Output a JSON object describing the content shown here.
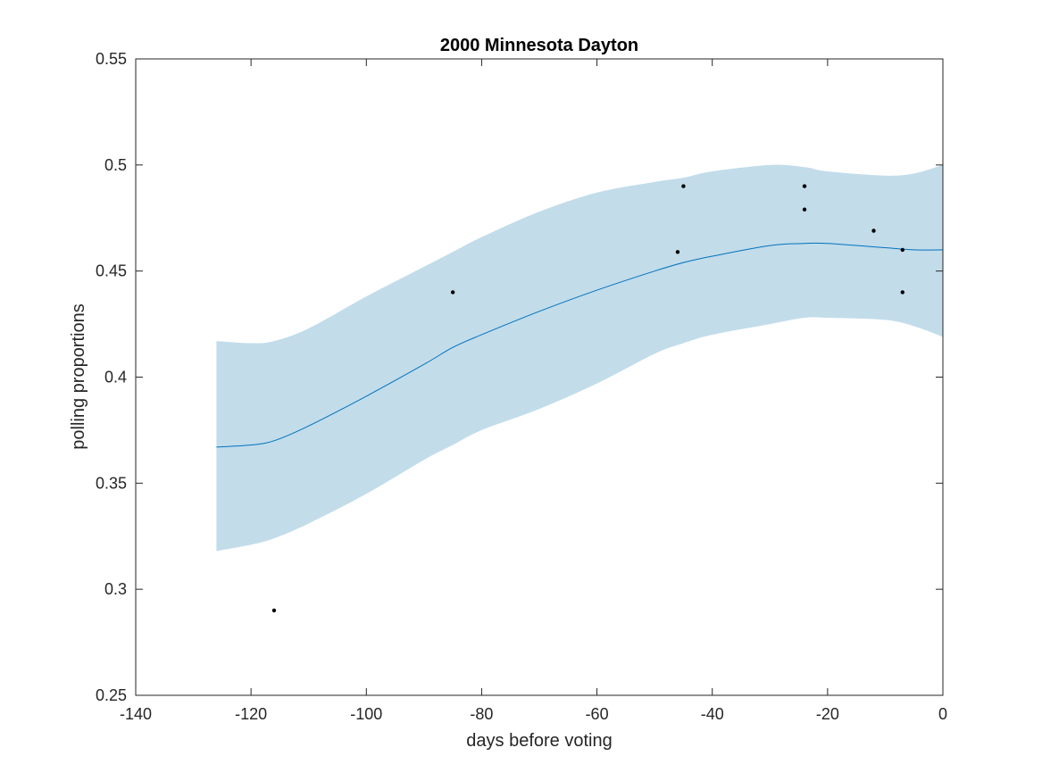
{
  "chart_data": {
    "type": "line",
    "title": "2000 Minnesota Dayton",
    "xlabel": "days before voting",
    "ylabel": "polling proportions",
    "xlim": [
      -140,
      0
    ],
    "ylim": [
      0.25,
      0.55
    ],
    "x_ticks": [
      -140,
      -120,
      -100,
      -80,
      -60,
      -40,
      -20,
      0
    ],
    "x_tick_labels": [
      "-140",
      "-120",
      "-100",
      "-80",
      "-60",
      "-40",
      "-20",
      "0"
    ],
    "y_ticks": [
      0.25,
      0.3,
      0.35,
      0.4,
      0.45,
      0.5,
      0.55
    ],
    "y_tick_labels": [
      "0.25",
      "0.3",
      "0.35",
      "0.4",
      "0.45",
      "0.5",
      "0.55"
    ],
    "grid": false,
    "series": [
      {
        "type": "area",
        "color": "#c2dcea",
        "x": [
          -126,
          -120,
          -116,
          -110,
          -100,
          -90,
          -85,
          -80,
          -70,
          -60,
          -50,
          -45,
          -40,
          -30,
          -24,
          -20,
          -10,
          -5,
          0
        ],
        "upper": [
          0.417,
          0.416,
          0.417,
          0.423,
          0.438,
          0.452,
          0.459,
          0.466,
          0.478,
          0.487,
          0.492,
          0.494,
          0.497,
          0.5,
          0.499,
          0.497,
          0.495,
          0.496,
          0.5
        ],
        "lower": [
          0.318,
          0.321,
          0.324,
          0.331,
          0.345,
          0.361,
          0.368,
          0.375,
          0.385,
          0.397,
          0.411,
          0.416,
          0.42,
          0.425,
          0.428,
          0.428,
          0.427,
          0.424,
          0.419
        ]
      },
      {
        "type": "line",
        "color": "#0072bd",
        "x": [
          -126,
          -120,
          -116,
          -110,
          -100,
          -90,
          -85,
          -80,
          -70,
          -60,
          -50,
          -45,
          -40,
          -30,
          -24,
          -20,
          -10,
          -5,
          0
        ],
        "values": [
          0.367,
          0.368,
          0.37,
          0.377,
          0.391,
          0.406,
          0.414,
          0.42,
          0.431,
          0.441,
          0.45,
          0.454,
          0.457,
          0.462,
          0.463,
          0.463,
          0.461,
          0.46,
          0.46
        ]
      },
      {
        "type": "scatter",
        "color": "#000000",
        "x": [
          -116,
          -85,
          -46,
          -45,
          -24,
          -24,
          -12,
          -7,
          -7
        ],
        "values": [
          0.29,
          0.44,
          0.459,
          0.49,
          0.49,
          0.479,
          0.469,
          0.46,
          0.44
        ]
      }
    ]
  }
}
